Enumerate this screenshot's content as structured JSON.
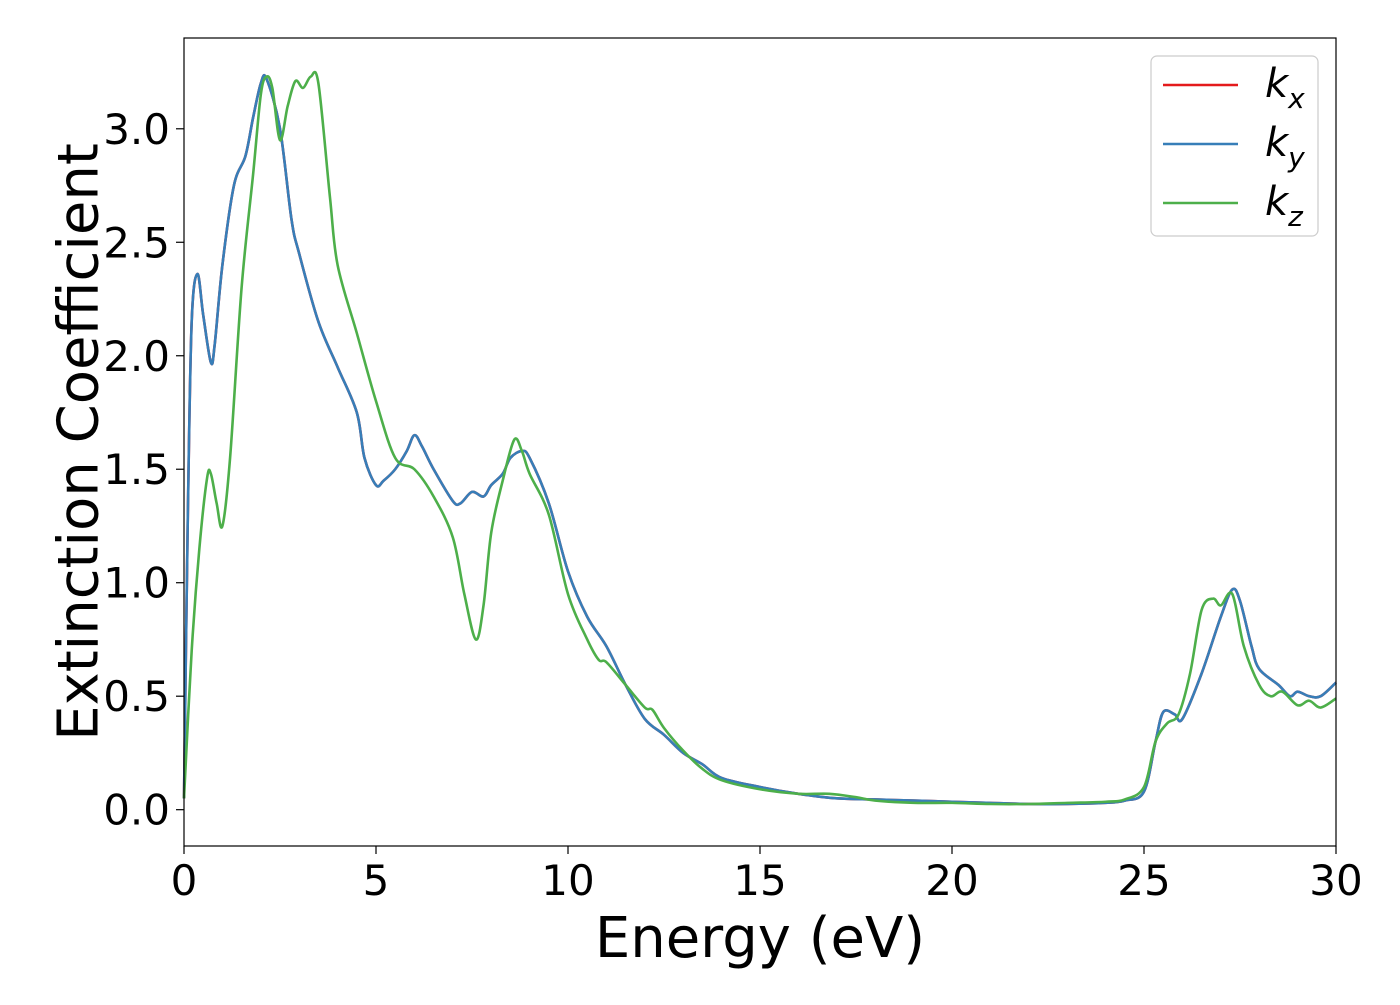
{
  "chart_data": {
    "type": "line",
    "title": "",
    "xlabel": "Energy (eV)",
    "ylabel": "Extinction Coefficient",
    "xlim": [
      0,
      30
    ],
    "ylim": [
      -0.16,
      3.4
    ],
    "xticks": [
      0,
      5,
      10,
      15,
      20,
      25,
      30
    ],
    "xtick_labels": [
      "0",
      "5",
      "10",
      "15",
      "20",
      "25",
      "30"
    ],
    "yticks": [
      0.0,
      0.5,
      1.0,
      1.5,
      2.0,
      2.5,
      3.0
    ],
    "ytick_labels": [
      "0.0",
      "0.5",
      "1.0",
      "1.5",
      "2.0",
      "2.5",
      "3.0"
    ],
    "grid": false,
    "legend_position": "top-right",
    "legend": [
      {
        "base": "k",
        "sub": "x",
        "color": "#e41a1c"
      },
      {
        "base": "k",
        "sub": "y",
        "color": "#377eb8"
      },
      {
        "base": "k",
        "sub": "z",
        "color": "#4daf4a"
      }
    ],
    "series": [
      {
        "name": "kx",
        "color": "#e41a1c",
        "x": [
          0,
          0.1,
          0.2,
          0.35,
          0.5,
          0.7,
          0.8,
          1.0,
          1.3,
          1.6,
          1.8,
          2.0,
          2.15,
          2.5,
          2.8,
          3.0,
          3.5,
          4.0,
          4.5,
          4.7,
          5.0,
          5.2,
          5.5,
          5.8,
          6.0,
          6.2,
          6.5,
          7.0,
          7.2,
          7.5,
          7.8,
          8.0,
          8.3,
          8.5,
          8.8,
          9.0,
          9.5,
          10.0,
          10.5,
          11.0,
          11.5,
          12.0,
          12.5,
          13.0,
          13.5,
          14.0,
          15.0,
          16.0,
          17.0,
          18.0,
          19.0,
          20.0,
          21.0,
          22.0,
          23.0,
          24.0,
          24.5,
          25.0,
          25.3,
          25.5,
          25.8,
          26.0,
          26.5,
          27.0,
          27.3,
          27.5,
          27.8,
          28.0,
          28.5,
          28.8,
          29.0,
          29.3,
          29.6,
          30.0
        ],
        "y": [
          0.05,
          1.3,
          2.15,
          2.36,
          2.18,
          1.97,
          2.05,
          2.4,
          2.75,
          2.88,
          3.05,
          3.2,
          3.22,
          3.0,
          2.6,
          2.45,
          2.15,
          1.95,
          1.75,
          1.55,
          1.43,
          1.45,
          1.5,
          1.58,
          1.65,
          1.6,
          1.5,
          1.36,
          1.35,
          1.4,
          1.38,
          1.43,
          1.48,
          1.55,
          1.58,
          1.55,
          1.35,
          1.05,
          0.85,
          0.72,
          0.55,
          0.4,
          0.33,
          0.25,
          0.2,
          0.14,
          0.1,
          0.07,
          0.05,
          0.045,
          0.04,
          0.035,
          0.03,
          0.025,
          0.025,
          0.03,
          0.04,
          0.08,
          0.3,
          0.43,
          0.42,
          0.4,
          0.6,
          0.85,
          0.97,
          0.92,
          0.72,
          0.62,
          0.55,
          0.5,
          0.52,
          0.5,
          0.5,
          0.56
        ]
      },
      {
        "name": "ky",
        "color": "#377eb8",
        "x": [
          0,
          0.1,
          0.2,
          0.35,
          0.5,
          0.7,
          0.8,
          1.0,
          1.3,
          1.6,
          1.8,
          2.0,
          2.15,
          2.5,
          2.8,
          3.0,
          3.5,
          4.0,
          4.5,
          4.7,
          5.0,
          5.2,
          5.5,
          5.8,
          6.0,
          6.2,
          6.5,
          7.0,
          7.2,
          7.5,
          7.8,
          8.0,
          8.3,
          8.5,
          8.8,
          9.0,
          9.5,
          10.0,
          10.5,
          11.0,
          11.5,
          12.0,
          12.5,
          13.0,
          13.5,
          14.0,
          15.0,
          16.0,
          17.0,
          18.0,
          19.0,
          20.0,
          21.0,
          22.0,
          23.0,
          24.0,
          24.5,
          25.0,
          25.3,
          25.5,
          25.8,
          26.0,
          26.5,
          27.0,
          27.3,
          27.5,
          27.8,
          28.0,
          28.5,
          28.8,
          29.0,
          29.3,
          29.6,
          30.0
        ],
        "y": [
          0.05,
          1.3,
          2.15,
          2.36,
          2.18,
          1.97,
          2.05,
          2.4,
          2.75,
          2.88,
          3.05,
          3.2,
          3.22,
          3.0,
          2.6,
          2.45,
          2.15,
          1.95,
          1.75,
          1.55,
          1.43,
          1.45,
          1.5,
          1.58,
          1.65,
          1.6,
          1.5,
          1.36,
          1.35,
          1.4,
          1.38,
          1.43,
          1.48,
          1.55,
          1.58,
          1.55,
          1.35,
          1.05,
          0.85,
          0.72,
          0.55,
          0.4,
          0.33,
          0.25,
          0.2,
          0.14,
          0.1,
          0.07,
          0.05,
          0.045,
          0.04,
          0.035,
          0.03,
          0.025,
          0.025,
          0.03,
          0.04,
          0.08,
          0.3,
          0.43,
          0.42,
          0.4,
          0.6,
          0.85,
          0.97,
          0.92,
          0.72,
          0.62,
          0.55,
          0.5,
          0.52,
          0.5,
          0.5,
          0.56
        ]
      },
      {
        "name": "kz",
        "color": "#4daf4a",
        "x": [
          0,
          0.2,
          0.4,
          0.6,
          0.7,
          0.85,
          1.0,
          1.2,
          1.5,
          1.8,
          2.0,
          2.15,
          2.3,
          2.5,
          2.7,
          2.9,
          3.1,
          3.3,
          3.5,
          3.8,
          4.0,
          4.5,
          5.0,
          5.5,
          6.0,
          6.5,
          7.0,
          7.3,
          7.6,
          7.8,
          8.0,
          8.3,
          8.6,
          8.8,
          9.0,
          9.5,
          10.0,
          10.5,
          10.8,
          11.0,
          11.5,
          12.0,
          12.2,
          12.5,
          13.0,
          13.5,
          14.0,
          15.0,
          16.0,
          16.8,
          17.5,
          18.0,
          19.0,
          20.0,
          21.0,
          22.0,
          23.0,
          24.0,
          24.5,
          25.0,
          25.3,
          25.6,
          25.9,
          26.2,
          26.5,
          26.8,
          27.0,
          27.3,
          27.6,
          28.0,
          28.3,
          28.6,
          29.0,
          29.3,
          29.6,
          30.0
        ],
        "y": [
          0.05,
          0.7,
          1.15,
          1.46,
          1.48,
          1.35,
          1.25,
          1.55,
          2.3,
          2.8,
          3.15,
          3.23,
          3.18,
          2.95,
          3.1,
          3.21,
          3.18,
          3.23,
          3.2,
          2.7,
          2.4,
          2.1,
          1.8,
          1.55,
          1.5,
          1.38,
          1.2,
          0.95,
          0.75,
          0.9,
          1.22,
          1.45,
          1.63,
          1.58,
          1.48,
          1.3,
          0.95,
          0.75,
          0.66,
          0.65,
          0.55,
          0.45,
          0.44,
          0.36,
          0.26,
          0.18,
          0.13,
          0.09,
          0.07,
          0.07,
          0.055,
          0.04,
          0.03,
          0.03,
          0.025,
          0.025,
          0.03,
          0.035,
          0.045,
          0.1,
          0.3,
          0.38,
          0.42,
          0.6,
          0.88,
          0.93,
          0.9,
          0.95,
          0.72,
          0.55,
          0.5,
          0.52,
          0.46,
          0.48,
          0.45,
          0.49
        ]
      }
    ]
  }
}
